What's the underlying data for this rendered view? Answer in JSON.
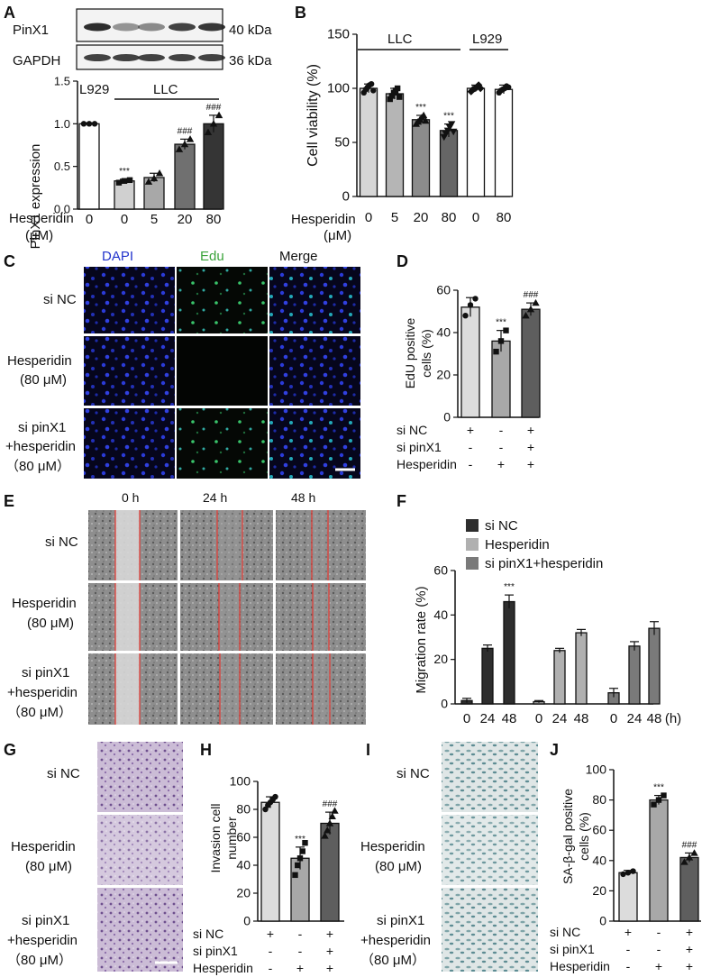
{
  "panels": {
    "A": {
      "label": "A",
      "blots": [
        {
          "name": "PinX1",
          "size": "40 kDa"
        },
        {
          "name": "GAPDH",
          "size": "36 kDa"
        }
      ],
      "bracket_left": "L929",
      "bracket_right": "LLC",
      "row_label": "Hesperidin",
      "unit": "(μM)",
      "doses": [
        "0",
        "0",
        "5",
        "20",
        "80"
      ],
      "chart_data": {
        "type": "bar",
        "categories": [
          "0",
          "0",
          "5",
          "20",
          "80"
        ],
        "values": [
          1.0,
          0.33,
          0.37,
          0.76,
          1.0
        ],
        "errors": [
          0.01,
          0.02,
          0.05,
          0.06,
          0.1
        ],
        "points": [
          [
            1.0,
            1.0,
            1.0
          ],
          [
            0.31,
            0.33,
            0.34
          ],
          [
            0.32,
            0.36,
            0.42
          ],
          [
            0.7,
            0.76,
            0.82
          ],
          [
            0.9,
            1.0,
            1.1
          ]
        ],
        "fills": [
          "#ffffff",
          "#d0d0d0",
          "#a8a8a8",
          "#707070",
          "#353535"
        ],
        "markers": [
          "circle",
          "square",
          "triangle",
          "triangle",
          "triangle"
        ],
        "sig": [
          "",
          "***",
          "",
          "###",
          "###"
        ],
        "ylabel": "PinX1 expression",
        "ylim": [
          0,
          1.5
        ],
        "yticks": [
          "0.0",
          "0.5",
          "1.0",
          "1.5"
        ]
      }
    },
    "B": {
      "label": "B",
      "bracket_left": "LLC",
      "bracket_right": "L929",
      "row_label": "Hesperidin",
      "unit": "(μM)",
      "doses": [
        "0",
        "5",
        "20",
        "80",
        "0",
        "80"
      ],
      "chart_data": {
        "type": "bar",
        "categories": [
          "0",
          "5",
          "20",
          "80",
          "0",
          "80"
        ],
        "values": [
          100,
          95,
          71,
          61,
          100,
          99
        ],
        "errors": [
          4,
          5,
          4,
          6,
          3,
          4
        ],
        "points": [
          [
            96,
            99,
            101,
            103,
            104,
            98
          ],
          [
            90,
            93,
            96,
            98,
            100,
            92
          ],
          [
            67,
            69,
            71,
            73,
            75,
            70
          ],
          [
            55,
            58,
            61,
            64,
            67,
            60
          ],
          [
            97,
            99,
            100,
            101,
            103,
            100
          ],
          [
            96,
            98,
            99,
            100,
            102,
            101
          ]
        ],
        "fills": [
          "#d6d6d6",
          "#b5b5b5",
          "#8c8c8c",
          "#666666",
          "#ffffff",
          "#ffffff"
        ],
        "markers": [
          "circle",
          "square",
          "triangle",
          "triangle-down",
          "diamond",
          "circle"
        ],
        "sig": [
          "",
          "",
          "***",
          "***",
          "",
          ""
        ],
        "ylabel": "Cell viability (%)",
        "ylim": [
          0,
          150
        ],
        "yticks": [
          "0",
          "50",
          "100",
          "150"
        ]
      }
    },
    "C": {
      "label": "C",
      "columns": [
        {
          "text": "DAPI",
          "color": "#2233cc"
        },
        {
          "text": "Edu",
          "color": "#3aa33a"
        },
        {
          "text": "Merge",
          "color": "#111111"
        }
      ],
      "rows": [
        [
          "si NC"
        ],
        [
          "Hesperidin",
          "(80 μM)"
        ],
        [
          "si pinX1",
          "+hesperidin",
          "（80 μM）"
        ]
      ]
    },
    "D": {
      "label": "D",
      "chart_data": {
        "type": "bar",
        "categories": [
          "si NC",
          "Hesperidin",
          "si pinX1+hesperidin"
        ],
        "values": [
          52,
          36,
          51
        ],
        "errors": [
          4.5,
          5,
          3
        ],
        "points": [
          [
            48,
            53,
            56
          ],
          [
            31,
            36,
            41
          ],
          [
            48,
            51,
            54
          ]
        ],
        "fills": [
          "#dcdcdc",
          "#a8a8a8",
          "#5e5e5e"
        ],
        "markers": [
          "circle",
          "square",
          "triangle"
        ],
        "sig": [
          "",
          "***",
          "###"
        ],
        "ylabel": "EdU positive cells (%)",
        "ylim": [
          0,
          60
        ],
        "yticks": [
          "0",
          "20",
          "40",
          "60"
        ]
      },
      "pm_rows": [
        {
          "label": "si NC",
          "signs": [
            "+",
            "-",
            "+"
          ]
        },
        {
          "label": "si pinX1",
          "signs": [
            "-",
            "-",
            "+"
          ]
        },
        {
          "label": "Hesperidin",
          "signs": [
            "-",
            "+",
            "+"
          ]
        }
      ]
    },
    "E": {
      "label": "E",
      "columns": [
        "0 h",
        "24 h",
        "48 h"
      ],
      "rows": [
        [
          "si NC"
        ],
        [
          "Hesperidin",
          "(80 μM)"
        ],
        [
          "si pinX1",
          "+hesperidin",
          "（80 μM）"
        ]
      ]
    },
    "F": {
      "label": "F",
      "legend": [
        {
          "name": "si NC",
          "color": "#2e2e2e"
        },
        {
          "name": "Hesperidin",
          "color": "#b0b0b0"
        },
        {
          "name": "si pinX1+hesperidin",
          "color": "#7a7a7a"
        }
      ],
      "chart_data": {
        "type": "bar",
        "x": [
          "0",
          "24",
          "48",
          "0",
          "24",
          "48",
          "0",
          "24",
          "48"
        ],
        "unit": "(h)",
        "values": [
          1.5,
          25,
          46,
          1,
          24,
          32,
          5,
          26,
          34
        ],
        "errors": [
          1,
          1.5,
          3,
          0.5,
          1,
          1.5,
          2,
          2,
          3
        ],
        "fills": [
          "#2e2e2e",
          "#2e2e2e",
          "#2e2e2e",
          "#b0b0b0",
          "#b0b0b0",
          "#b0b0b0",
          "#7a7a7a",
          "#7a7a7a",
          "#7a7a7a"
        ],
        "sig": [
          "",
          "",
          "***",
          "",
          "",
          "",
          "",
          "",
          ""
        ],
        "ylabel": "Migration rate (%)",
        "ylim": [
          0,
          60
        ],
        "yticks": [
          "0",
          "20",
          "40",
          "60"
        ]
      }
    },
    "G": {
      "label": "G",
      "rows": [
        [
          "si NC"
        ],
        [
          "Hesperidin",
          "(80 μM)"
        ],
        [
          "si pinX1",
          "+hesperidin",
          "（80 μM）"
        ]
      ]
    },
    "H": {
      "label": "H",
      "chart_data": {
        "type": "bar",
        "categories": [
          "si NC",
          "Hesperidin",
          "si pinX1+hesperidin"
        ],
        "values": [
          85,
          45,
          70
        ],
        "errors": [
          4,
          8,
          8
        ],
        "points": [
          [
            80,
            83,
            85,
            87,
            89
          ],
          [
            33,
            40,
            45,
            50,
            56
          ],
          [
            61,
            65,
            70,
            75,
            79
          ]
        ],
        "fills": [
          "#dcdcdc",
          "#a8a8a8",
          "#5e5e5e"
        ],
        "markers": [
          "circle",
          "square",
          "triangle"
        ],
        "sig": [
          "",
          "***",
          "###"
        ],
        "ylabel": "Invasion cell number",
        "ylim": [
          0,
          100
        ],
        "yticks": [
          "0",
          "20",
          "40",
          "60",
          "80",
          "100"
        ]
      },
      "pm_rows": [
        {
          "label": "si NC",
          "signs": [
            "+",
            "-",
            "+"
          ]
        },
        {
          "label": "si pinX1",
          "signs": [
            "-",
            "-",
            "+"
          ]
        },
        {
          "label": "Hesperidin",
          "signs": [
            "-",
            "+",
            "+"
          ]
        }
      ]
    },
    "I": {
      "label": "I",
      "rows": [
        [
          "si NC"
        ],
        [
          "Hesperidin",
          "(80 μM)"
        ],
        [
          "si pinX1",
          "+hesperidin",
          "（80 μM）"
        ]
      ]
    },
    "J": {
      "label": "J",
      "chart_data": {
        "type": "bar",
        "categories": [
          "si NC",
          "Hesperidin",
          "si pinX1+hesperidin"
        ],
        "values": [
          32,
          80,
          42
        ],
        "errors": [
          1.5,
          3,
          3
        ],
        "points": [
          [
            31,
            32,
            33
          ],
          [
            77,
            80,
            83
          ],
          [
            39,
            42,
            45
          ]
        ],
        "fills": [
          "#dcdcdc",
          "#a8a8a8",
          "#5e5e5e"
        ],
        "markers": [
          "circle",
          "square",
          "triangle"
        ],
        "sig": [
          "",
          "***",
          "###"
        ],
        "ylabel": "SA-β-gal positive cells (%)",
        "ylim": [
          0,
          100
        ],
        "yticks": [
          "0",
          "20",
          "40",
          "60",
          "80",
          "100"
        ]
      },
      "pm_rows": [
        {
          "label": "si NC",
          "signs": [
            "+",
            "-",
            "+"
          ]
        },
        {
          "label": "si pinX1",
          "signs": [
            "-",
            "-",
            "+"
          ]
        },
        {
          "label": "Hesperidin",
          "signs": [
            "-",
            "+",
            "+"
          ]
        }
      ]
    }
  }
}
